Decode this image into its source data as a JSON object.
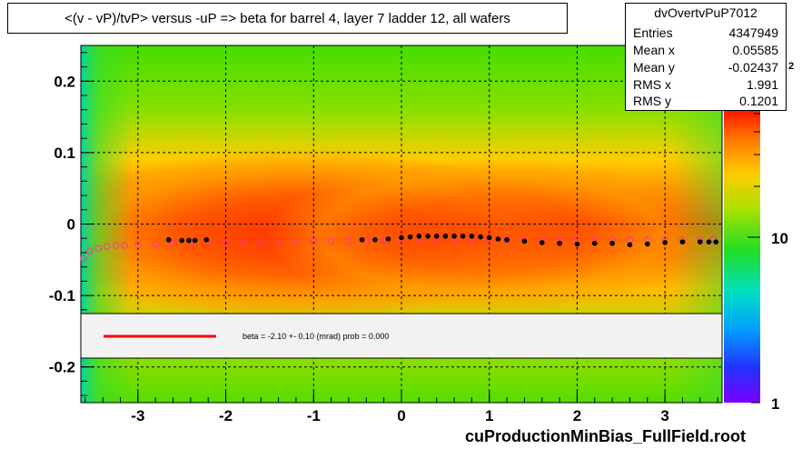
{
  "title": "<(v - vP)/tvP> versus  -uP => beta for barrel 4, layer 7 ladder 12, all wafers",
  "stats": {
    "name": "dvOvertvPuP7012",
    "rows": [
      {
        "key": "Entries",
        "value": "4347949"
      },
      {
        "key": "Mean x",
        "value": "0.05585"
      },
      {
        "key": "Mean y",
        "value": "-0.02437"
      },
      {
        "key": "RMS x",
        "value": "1.991"
      },
      {
        "key": "RMS y",
        "value": "0.1201"
      }
    ]
  },
  "legend": {
    "text": "beta =   -2.10 +-  0.10 (mrad) prob = 0.000",
    "line_color": "#ff0000"
  },
  "footer": "cuProductionMinBias_FullField.root",
  "chart_data": {
    "type": "heatmap",
    "x_ticks": [
      "-3",
      "-2",
      "-1",
      "0",
      "1",
      "2",
      "3"
    ],
    "y_ticks": [
      "0.2",
      "0.1",
      "0",
      "-0.1",
      "-0.2"
    ],
    "xlim": [
      -3.65,
      3.65
    ],
    "ylim": [
      -0.25,
      0.25
    ],
    "z_ticks": [
      "1",
      "10"
    ],
    "z_exponent_fragment": "2",
    "grid": true,
    "profile_points": {
      "x": [
        -2.65,
        -2.5,
        -2.42,
        -2.35,
        -2.22,
        -0.45,
        -0.3,
        -0.15,
        0.0,
        0.1,
        0.2,
        0.3,
        0.4,
        0.5,
        0.6,
        0.7,
        0.8,
        0.9,
        1.0,
        1.1,
        1.2,
        1.4,
        1.6,
        1.8,
        2.0,
        2.2,
        2.4,
        2.6,
        2.8,
        3.0,
        3.2,
        3.4,
        3.5,
        3.58
      ],
      "y": [
        -0.022,
        -0.023,
        -0.023,
        -0.023,
        -0.022,
        -0.022,
        -0.022,
        -0.021,
        -0.019,
        -0.018,
        -0.017,
        -0.017,
        -0.017,
        -0.017,
        -0.017,
        -0.017,
        -0.017,
        -0.018,
        -0.019,
        -0.021,
        -0.022,
        -0.024,
        -0.026,
        -0.027,
        -0.028,
        -0.027,
        -0.027,
        -0.029,
        -0.028,
        -0.026,
        -0.025,
        -0.025,
        -0.025,
        -0.025
      ]
    },
    "fit_points": {
      "x": [
        -3.62,
        -3.55,
        -3.45,
        -3.35,
        -3.25,
        -3.15,
        -3.0,
        -2.8,
        -2.6,
        -2.4,
        -2.2,
        -2.0,
        -1.8,
        -1.6,
        -1.4,
        -1.2,
        -1.0,
        -0.8,
        -0.6,
        -0.4,
        -0.2,
        0.0,
        0.2,
        0.4,
        0.6,
        0.8,
        1.0,
        1.2,
        1.4,
        1.6,
        1.8,
        2.0,
        2.2,
        2.4,
        2.6,
        2.8,
        3.0,
        3.2,
        3.4,
        3.55
      ],
      "y": [
        -0.048,
        -0.038,
        -0.034,
        -0.031,
        -0.03,
        -0.03,
        -0.029,
        -0.028,
        -0.027,
        -0.027,
        -0.026,
        -0.026,
        -0.026,
        -0.025,
        -0.025,
        -0.025,
        -0.024,
        -0.024,
        -0.024,
        -0.023,
        -0.023,
        -0.023,
        -0.023,
        -0.023,
        -0.022,
        -0.022,
        -0.022,
        -0.022,
        -0.022,
        -0.022,
        -0.022,
        -0.022,
        -0.022,
        -0.022,
        -0.022,
        -0.022,
        -0.022,
        -0.022,
        -0.022,
        -0.021
      ]
    }
  }
}
